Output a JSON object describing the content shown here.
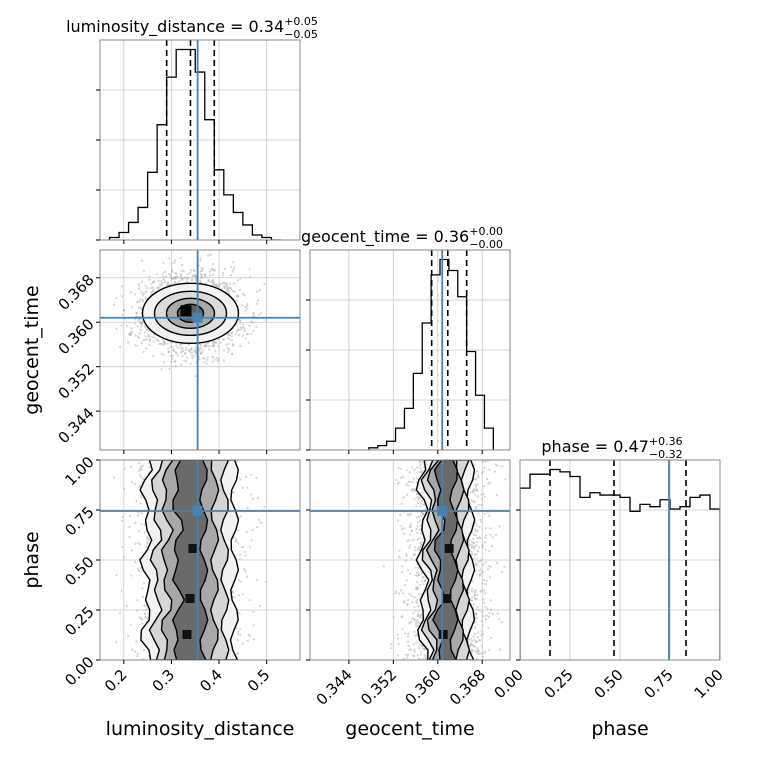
{
  "chart_data": {
    "type": "corner",
    "parameters": [
      {
        "name": "luminosity_distance",
        "range": [
          0.15,
          0.57
        ],
        "ticks": [
          0.2,
          0.3,
          0.4,
          0.5
        ],
        "tick_labels": [
          "0.2",
          "0.3",
          "0.4",
          "0.5"
        ],
        "truth": 0.355,
        "title": {
          "base": "luminosity_distance = 0.34",
          "plus": "+0.05",
          "minus": "−0.05"
        },
        "quantiles": [
          0.29,
          0.34,
          0.39
        ],
        "hist_edges": [
          0.17,
          0.19,
          0.21,
          0.23,
          0.25,
          0.27,
          0.29,
          0.31,
          0.33,
          0.35,
          0.37,
          0.39,
          0.41,
          0.43,
          0.45,
          0.47,
          0.49,
          0.51,
          0.53
        ],
        "hist_values": [
          1,
          3,
          7,
          13,
          27,
          46,
          65,
          76,
          76,
          67,
          48,
          28,
          18,
          11,
          6,
          2,
          1,
          0
        ]
      },
      {
        "name": "geocent_time",
        "range": [
          0.337,
          0.373
        ],
        "ticks": [
          0.344,
          0.352,
          0.36,
          0.368
        ],
        "tick_labels": [
          "0.344",
          "0.352",
          "0.360",
          "0.368"
        ],
        "truth": 0.3608,
        "title": {
          "base": "geocent_time = 0.36",
          "plus": "+0.00",
          "minus": "−0.00"
        },
        "quantiles": [
          0.3589,
          0.3618,
          0.3652
        ],
        "hist_edges": [
          0.3476,
          0.3492,
          0.3508,
          0.3524,
          0.354,
          0.3556,
          0.3572,
          0.3588,
          0.3604,
          0.362,
          0.3636,
          0.3652,
          0.3668,
          0.3684,
          0.37
        ],
        "hist_values": [
          1,
          2,
          4,
          10,
          19,
          35,
          58,
          80,
          87,
          82,
          70,
          45,
          25,
          10
        ]
      },
      {
        "name": "phase",
        "range": [
          0.0,
          1.0
        ],
        "ticks": [
          0.0,
          0.25,
          0.5,
          0.75,
          1.0
        ],
        "tick_labels": [
          "0.00",
          "0.25",
          "0.50",
          "0.75",
          "1.00"
        ],
        "truth": 0.745,
        "title": {
          "base": "phase = 0.47",
          "plus": "+0.36",
          "minus": "−0.32"
        },
        "quantiles": [
          0.15,
          0.47,
          0.83
        ],
        "hist_edges": [
          0.0,
          0.05,
          0.1,
          0.15,
          0.2,
          0.25,
          0.3,
          0.35,
          0.4,
          0.45,
          0.5,
          0.55,
          0.6,
          0.65,
          0.7,
          0.75,
          0.8,
          0.85,
          0.9,
          0.95,
          1.0
        ],
        "hist_values": [
          74,
          80,
          80,
          82,
          81,
          79,
          70,
          72,
          71,
          71,
          70,
          64,
          67,
          66,
          69,
          65,
          66,
          70,
          71,
          65
        ]
      }
    ],
    "y_tick_labels": {
      "geocent_time": [
        "0.344",
        "0.352",
        "0.360",
        "0.368"
      ],
      "phase": [
        "0.00",
        "0.25",
        "0.50",
        "0.75",
        "1.00"
      ]
    },
    "colors": {
      "truth": "#4682b4",
      "line": "#000000",
      "grid": "#c8c8c8",
      "scatter": "#b0b0b0"
    },
    "grid": true
  }
}
